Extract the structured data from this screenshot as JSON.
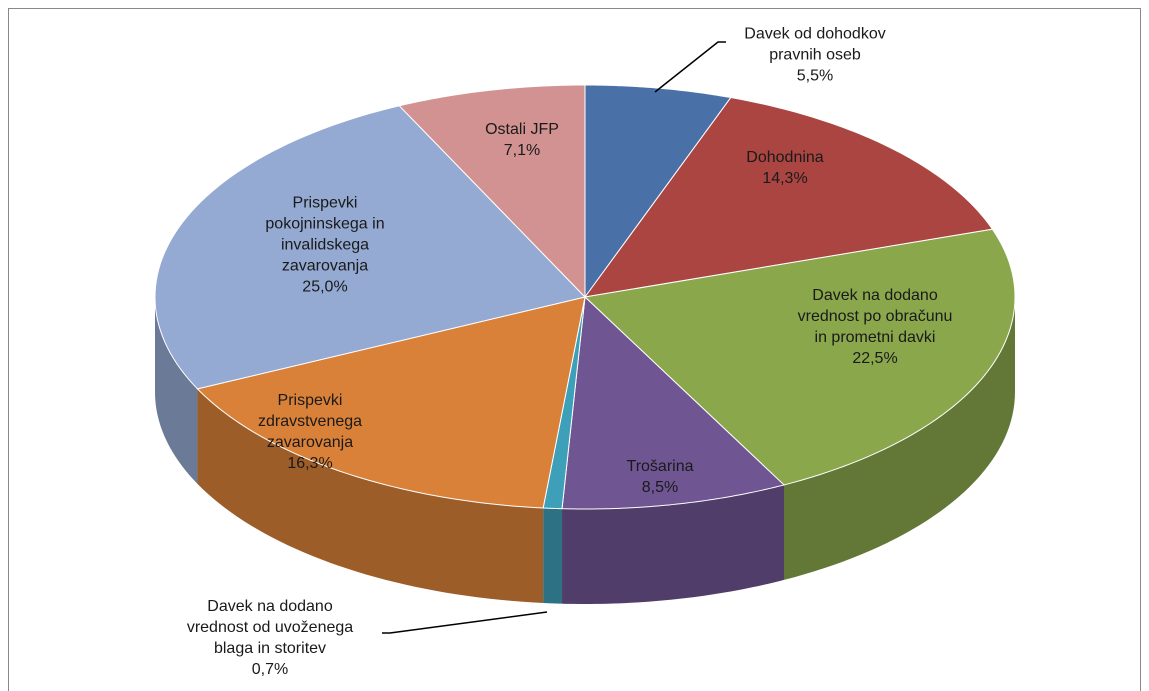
{
  "chart_data": {
    "type": "pie",
    "categories": [
      "Davek od dohodkov\npravnih oseb",
      "Dohodnina",
      "Davek na dodano\nvrednost po obračunu\nin prometni davki",
      "Trošarina",
      "Davek na dodano\nvrednost od uvoženega\nblaga in storitev",
      "Prispevki\nzdravstvenega\nzavarovanja",
      "Prispevki\npokojninskega in\ninvalidskega\nzavarovanja",
      "Ostali JFP"
    ],
    "values": [
      5.5,
      14.3,
      22.5,
      8.5,
      0.7,
      16.3,
      25.0,
      7.1
    ],
    "value_labels": [
      "5,5%",
      "14,3%",
      "22,5%",
      "8,5%",
      "0,7%",
      "16,3%",
      "25,0%",
      "7,1%"
    ],
    "colors": [
      "#4a70a8",
      "#aa4542",
      "#8aa74c",
      "#6f5592",
      "#3d9fb8",
      "#da8139",
      "#94aad2",
      "#d39292"
    ]
  }
}
